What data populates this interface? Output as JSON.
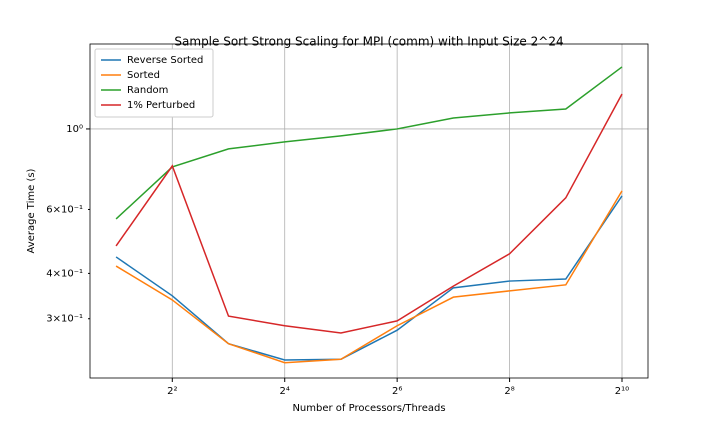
{
  "chart_data": {
    "type": "line",
    "title": "Sample Sort Strong Scaling for MPI (comm) with Input Size 2^24",
    "x_label": "Number of Processors/Threads",
    "y_label": "Average Time (s)",
    "x": [
      2,
      4,
      8,
      16,
      32,
      64,
      128,
      256,
      512,
      1024
    ],
    "series": [
      {
        "name": "Reverse Sorted",
        "color": "#1f77b4",
        "values": [
          0.444,
          0.347,
          0.256,
          0.231,
          0.232,
          0.279,
          0.365,
          0.381,
          0.386,
          0.654
        ]
      },
      {
        "name": "Sorted",
        "color": "#ff7f0e",
        "values": [
          0.419,
          0.338,
          0.256,
          0.227,
          0.232,
          0.287,
          0.344,
          0.358,
          0.372,
          0.675
        ]
      },
      {
        "name": "Random",
        "color": "#2ca02c",
        "values": [
          0.565,
          0.786,
          0.881,
          0.921,
          0.957,
          1.0,
          1.072,
          1.107,
          1.135,
          1.482
        ]
      },
      {
        "name": "1% Perturbed",
        "color": "#d62728",
        "values": [
          0.476,
          0.791,
          0.305,
          0.287,
          0.274,
          0.296,
          0.369,
          0.453,
          0.646,
          1.248
        ]
      }
    ],
    "x_log_base": 2,
    "y_log_base": 10,
    "xlim": [
      1.45,
      1411
    ],
    "ylim": [
      0.206,
      1.714
    ],
    "xticks": [
      {
        "value": 4,
        "label": "2²"
      },
      {
        "value": 16,
        "label": "2⁴"
      },
      {
        "value": 64,
        "label": "2⁶"
      },
      {
        "value": 256,
        "label": "2⁸"
      },
      {
        "value": 1024,
        "label": "2¹⁰"
      }
    ],
    "yticks": [
      {
        "value": 1,
        "label": "10⁰"
      }
    ],
    "y_minor_ticks": [
      {
        "value": 0.3,
        "label": "3×10⁻¹"
      },
      {
        "value": 0.4,
        "label": "4×10⁻¹"
      },
      {
        "value": 0.6,
        "label": "6×10⁻¹"
      }
    ],
    "grid": true,
    "legend": "upper left"
  }
}
